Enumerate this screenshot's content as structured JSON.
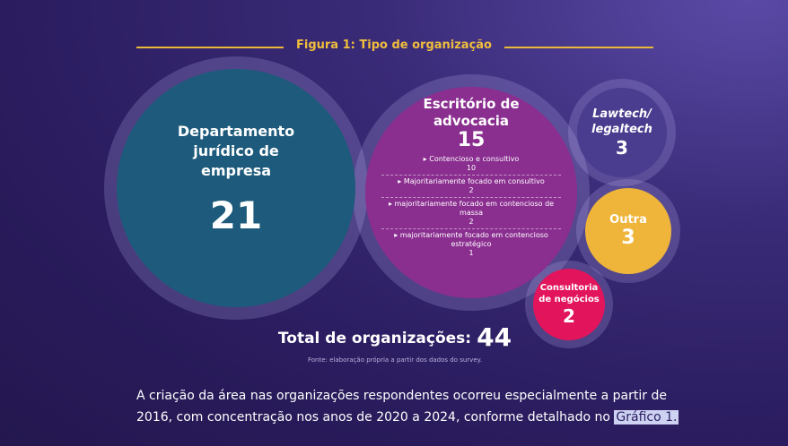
{
  "figure_title": "Figura 1: Tipo de organização",
  "bubbles": [
    {
      "label": "Departamento jurídico de empresa",
      "value": 21
    },
    {
      "label": "Escritório de advocacia",
      "value": 15,
      "items": [
        {
          "label": "Contencioso e consultivo",
          "value": 10
        },
        {
          "label": "Majoritariamente focado em consultivo",
          "value": 2
        },
        {
          "label": "majoritariamente focado em contencioso de massa",
          "value": 2
        },
        {
          "label": "majoritariamente focado em contencioso estratégico",
          "value": 1
        }
      ]
    },
    {
      "label": "Lawtech/ legaltech",
      "value": 3
    },
    {
      "label": "Outra",
      "value": 3
    },
    {
      "label": "Consultoria de negócios",
      "value": 2
    }
  ],
  "total": {
    "label": "Total de organizações:",
    "value": 44
  },
  "source": "Fonte: elaboração própria a partir dos dados do survey.",
  "paragraph": {
    "lines": [
      "A criação da área nas organizações respondentes ocorreu especialmente a partir de",
      "2016, com concentração nos anos de 2020 a 2024, conforme detalhado no"
    ],
    "link": "Gráfico 1."
  }
}
